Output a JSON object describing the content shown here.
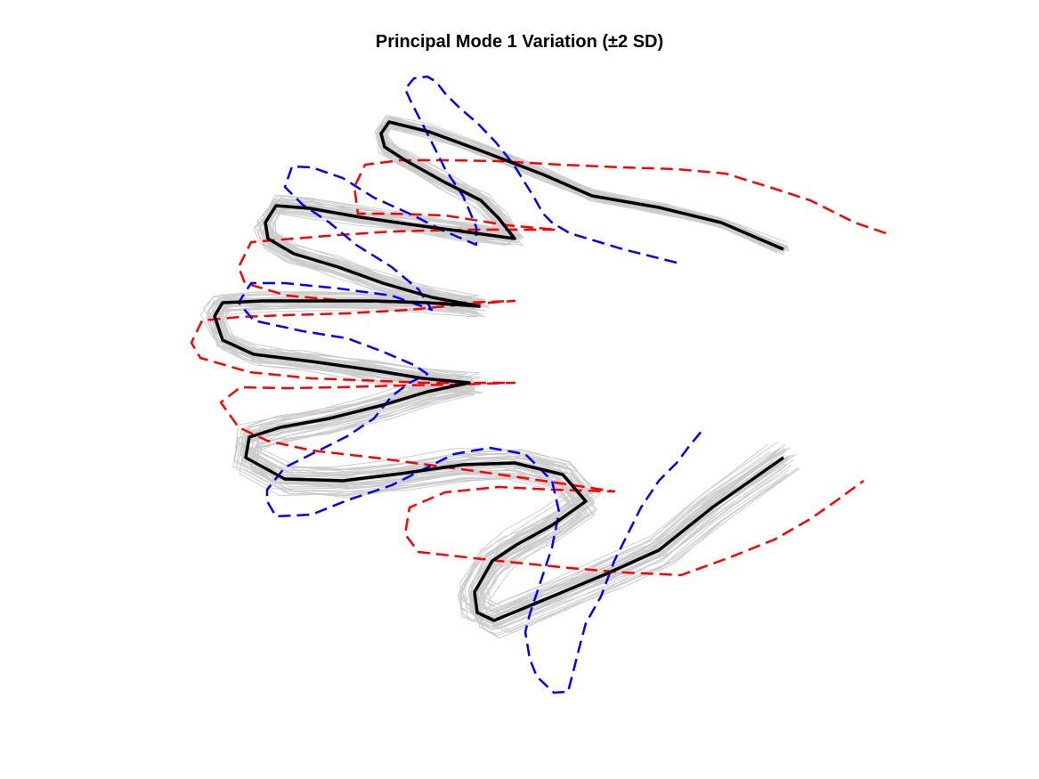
{
  "chart_data": {
    "type": "line",
    "title": "Principal Mode 1 Variation (±2 SD)",
    "xlabel": "",
    "ylabel": "",
    "axes_visible": false,
    "grid": false,
    "legend": "none",
    "colors": {
      "samples": "#cccccc",
      "mean": "#000000",
      "plus_2sd": "#ff0000",
      "minus_2sd": "#0000ff"
    },
    "series": [
      {
        "style": "solid",
        "color": "#000000",
        "points": [
          [
            880,
            280
          ],
          [
            810,
            250
          ],
          [
            740,
            233
          ],
          [
            665,
            220
          ],
          [
            610,
            196
          ],
          [
            542,
            170
          ],
          [
            482,
            148
          ],
          [
            437,
            137
          ],
          [
            428,
            150
          ],
          [
            432,
            165
          ],
          [
            455,
            180
          ],
          [
            500,
            205
          ],
          [
            540,
            225
          ],
          [
            560,
            245
          ],
          [
            578,
            268
          ],
          [
            520,
            260
          ],
          [
            460,
            252
          ],
          [
            405,
            244
          ],
          [
            348,
            234
          ],
          [
            310,
            231
          ],
          [
            298,
            250
          ],
          [
            301,
            268
          ],
          [
            330,
            285
          ],
          [
            380,
            300
          ],
          [
            430,
            318
          ],
          [
            485,
            334
          ],
          [
            538,
            344
          ],
          [
            480,
            340
          ],
          [
            420,
            338
          ],
          [
            350,
            338
          ],
          [
            295,
            338
          ],
          [
            250,
            340
          ],
          [
            241,
            355
          ],
          [
            250,
            382
          ],
          [
            285,
            398
          ],
          [
            350,
            406
          ],
          [
            420,
            416
          ],
          [
            475,
            425
          ],
          [
            527,
            430
          ],
          [
            480,
            440
          ],
          [
            430,
            455
          ],
          [
            370,
            470
          ],
          [
            315,
            480
          ],
          [
            280,
            491
          ],
          [
            276,
            514
          ],
          [
            320,
            538
          ],
          [
            385,
            540
          ],
          [
            450,
            532
          ],
          [
            520,
            522
          ],
          [
            578,
            520
          ],
          [
            632,
            533
          ],
          [
            658,
            563
          ],
          [
            620,
            590
          ],
          [
            580,
            612
          ],
          [
            553,
            630
          ],
          [
            533,
            665
          ],
          [
            536,
            688
          ],
          [
            555,
            697
          ],
          [
            620,
            670
          ],
          [
            680,
            645
          ],
          [
            740,
            618
          ],
          [
            800,
            570
          ],
          [
            880,
            514
          ]
        ]
      },
      {
        "style": "dashed",
        "color": "#ff0000",
        "points": [
          [
            995,
            262
          ],
          [
            960,
            250
          ],
          [
            910,
            225
          ],
          [
            870,
            212
          ],
          [
            815,
            195
          ],
          [
            760,
            190
          ],
          [
            700,
            188
          ],
          [
            630,
            185
          ],
          [
            560,
            181
          ],
          [
            500,
            180
          ],
          [
            450,
            180
          ],
          [
            410,
            185
          ],
          [
            398,
            210
          ],
          [
            402,
            240
          ],
          [
            440,
            240
          ],
          [
            500,
            242
          ],
          [
            570,
            253
          ],
          [
            625,
            258
          ],
          [
            575,
            258
          ],
          [
            525,
            258
          ],
          [
            440,
            260
          ],
          [
            380,
            264
          ],
          [
            330,
            268
          ],
          [
            282,
            272
          ],
          [
            268,
            300
          ],
          [
            275,
            318
          ],
          [
            322,
            332
          ],
          [
            390,
            338
          ],
          [
            460,
            340
          ],
          [
            520,
            340
          ],
          [
            578,
            338
          ],
          [
            520,
            342
          ],
          [
            460,
            348
          ],
          [
            390,
            352
          ],
          [
            320,
            354
          ],
          [
            270,
            356
          ],
          [
            227,
            360
          ],
          [
            215,
            385
          ],
          [
            225,
            402
          ],
          [
            280,
            418
          ],
          [
            350,
            425
          ],
          [
            430,
            428
          ],
          [
            480,
            430
          ],
          [
            578,
            430
          ],
          [
            510,
            432
          ],
          [
            450,
            433
          ],
          [
            380,
            435
          ],
          [
            320,
            436
          ],
          [
            270,
            435
          ],
          [
            248,
            452
          ],
          [
            268,
            480
          ],
          [
            300,
            495
          ],
          [
            350,
            506
          ],
          [
            420,
            514
          ],
          [
            480,
            522
          ],
          [
            540,
            530
          ],
          [
            610,
            540
          ],
          [
            690,
            552
          ],
          [
            620,
            550
          ],
          [
            560,
            547
          ],
          [
            500,
            553
          ],
          [
            460,
            570
          ],
          [
            455,
            600
          ],
          [
            470,
            620
          ],
          [
            560,
            630
          ],
          [
            640,
            638
          ],
          [
            700,
            643
          ],
          [
            765,
            646
          ],
          [
            820,
            626
          ],
          [
            870,
            606
          ],
          [
            910,
            583
          ],
          [
            940,
            562
          ],
          [
            970,
            540
          ]
        ]
      },
      {
        "style": "dashed",
        "color": "#0000ff",
        "points": [
          [
            760,
            295
          ],
          [
            700,
            280
          ],
          [
            640,
            262
          ],
          [
            620,
            250
          ],
          [
            610,
            240
          ],
          [
            600,
            222
          ],
          [
            577,
            185
          ],
          [
            557,
            160
          ],
          [
            538,
            140
          ],
          [
            515,
            120
          ],
          [
            500,
            105
          ],
          [
            490,
            92
          ],
          [
            480,
            86
          ],
          [
            465,
            88
          ],
          [
            455,
            100
          ],
          [
            462,
            115
          ],
          [
            480,
            150
          ],
          [
            500,
            190
          ],
          [
            520,
            220
          ],
          [
            535,
            255
          ],
          [
            535,
            275
          ],
          [
            500,
            260
          ],
          [
            460,
            240
          ],
          [
            420,
            222
          ],
          [
            385,
            200
          ],
          [
            350,
            188
          ],
          [
            328,
            187
          ],
          [
            320,
            210
          ],
          [
            340,
            230
          ],
          [
            370,
            250
          ],
          [
            400,
            275
          ],
          [
            440,
            300
          ],
          [
            470,
            325
          ],
          [
            485,
            348
          ],
          [
            440,
            332
          ],
          [
            380,
            324
          ],
          [
            320,
            318
          ],
          [
            282,
            318
          ],
          [
            268,
            340
          ],
          [
            285,
            360
          ],
          [
            340,
            372
          ],
          [
            390,
            380
          ],
          [
            430,
            395
          ],
          [
            465,
            410
          ],
          [
            480,
            420
          ],
          [
            460,
            430
          ],
          [
            440,
            445
          ],
          [
            420,
            470
          ],
          [
            390,
            490
          ],
          [
            350,
            510
          ],
          [
            320,
            525
          ],
          [
            300,
            550
          ],
          [
            300,
            563
          ],
          [
            310,
            580
          ],
          [
            350,
            578
          ],
          [
            390,
            562
          ],
          [
            440,
            545
          ],
          [
            510,
            510
          ],
          [
            550,
            503
          ],
          [
            590,
            510
          ],
          [
            620,
            540
          ],
          [
            628,
            575
          ],
          [
            620,
            615
          ],
          [
            605,
            660
          ],
          [
            595,
            690
          ],
          [
            590,
            710
          ],
          [
            595,
            740
          ],
          [
            603,
            760
          ],
          [
            622,
            778
          ],
          [
            638,
            777
          ],
          [
            645,
            750
          ],
          [
            650,
            730
          ],
          [
            658,
            700
          ],
          [
            675,
            670
          ],
          [
            690,
            630
          ],
          [
            705,
            600
          ],
          [
            720,
            570
          ],
          [
            740,
            540
          ],
          [
            760,
            520
          ],
          [
            775,
            500
          ],
          [
            790,
            482
          ]
        ]
      }
    ]
  }
}
